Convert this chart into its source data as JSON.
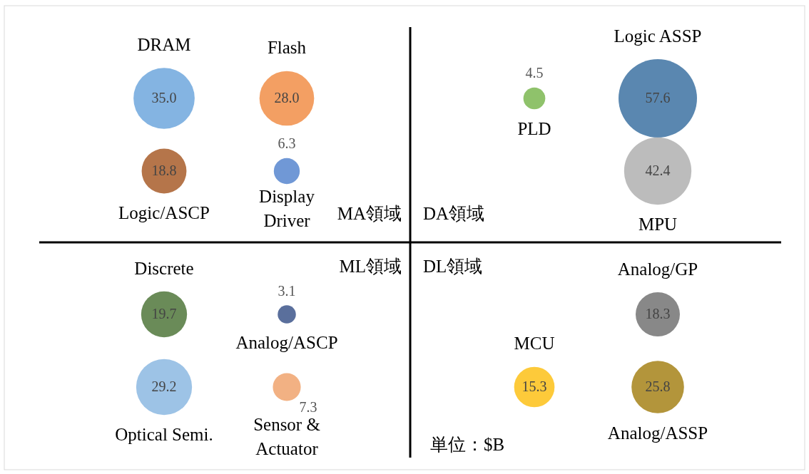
{
  "chart_data": {
    "type": "other",
    "value_labels": [
      "35.0",
      "28.0",
      "18.8",
      "6.3",
      "4.5",
      "57.6",
      "42.4",
      "19.7",
      "29.2",
      "3.1",
      "7.3",
      "15.3",
      "18.3",
      "25.8"
    ],
    "categories": [
      "DRAM",
      "Flash",
      "Logic/ASCP",
      "Display Driver",
      "PLD",
      "Logic ASSP",
      "MPU",
      "Discrete",
      "Optical Semi.",
      "Analog/ASCP",
      "Sensor & Actuator",
      "MCU",
      "Analog/GP",
      "Analog/ASSP"
    ],
    "values": [
      35.0,
      28.0,
      18.8,
      6.3,
      4.5,
      57.6,
      42.4,
      19.7,
      29.2,
      3.1,
      7.3,
      15.3,
      18.3,
      25.8
    ],
    "colors": [
      "#84b4e2",
      "#f39f63",
      "#b5754a",
      "#7098d6",
      "#8fc26b",
      "#5a87b0",
      "#bcbcbc",
      "#6a8b58",
      "#9dc3e6",
      "#5a6f9c",
      "#f2b183",
      "#fdca3a",
      "#888888",
      "#b3953b"
    ],
    "annotations": [
      "MA領域",
      "DA領域",
      "ML領域",
      "DL領域",
      "単位：$B"
    ]
  }
}
